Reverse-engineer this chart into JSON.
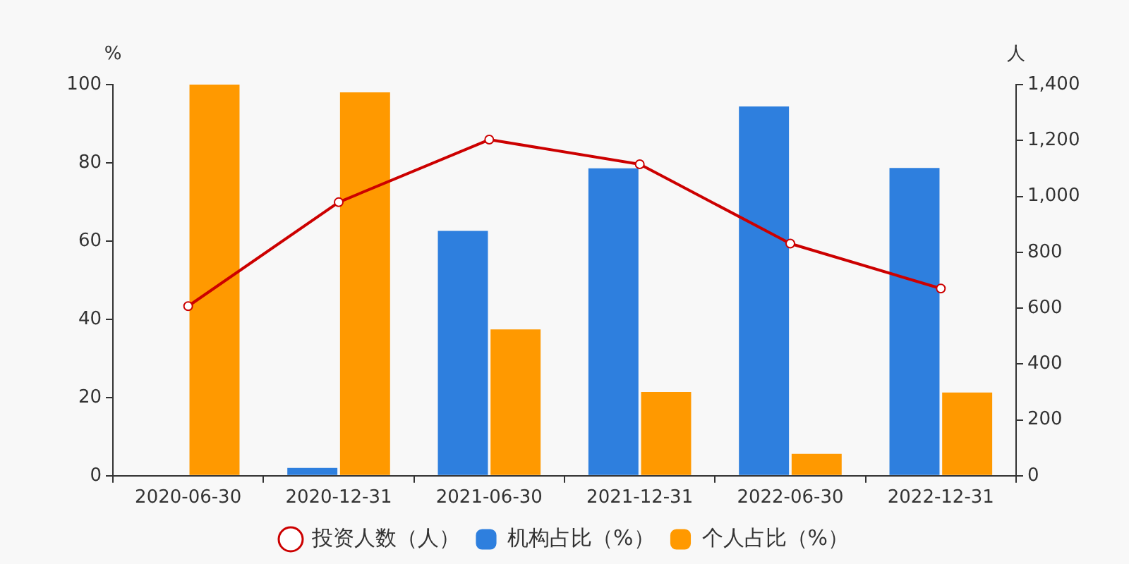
{
  "chart_data": {
    "type": "bar",
    "categories": [
      "2020-06-30",
      "2020-12-31",
      "2021-06-30",
      "2021-12-31",
      "2022-06-30",
      "2022-12-31"
    ],
    "ylabel": "%",
    "y2label": "人",
    "ylim": [
      0,
      100
    ],
    "yticks": [
      0,
      20,
      40,
      60,
      80,
      100
    ],
    "y2lim": [
      0,
      1400
    ],
    "y2ticks": [
      0,
      200,
      400,
      600,
      800,
      {
        "value": 1000,
        "label": "1,000"
      },
      {
        "value": 1200,
        "label": "1,200"
      },
      {
        "value": 1400,
        "label": "1,400"
      }
    ],
    "legend": "bottom",
    "series": [
      {
        "name": "投资人数（人）",
        "type": "line",
        "axis": "y2",
        "color": "#cc0000",
        "marker": "circle",
        "values": [
          607,
          979,
          1203,
          1115,
          831,
          670
        ]
      },
      {
        "name": "机构占比（%）",
        "color": "#2e7fde",
        "values": [
          0,
          2,
          62.6,
          78.6,
          94.4,
          78.7
        ]
      },
      {
        "name": "个人占比（%）",
        "color": "#ff9900",
        "values": [
          100,
          98,
          37.4,
          21.4,
          5.6,
          21.3
        ]
      }
    ]
  }
}
